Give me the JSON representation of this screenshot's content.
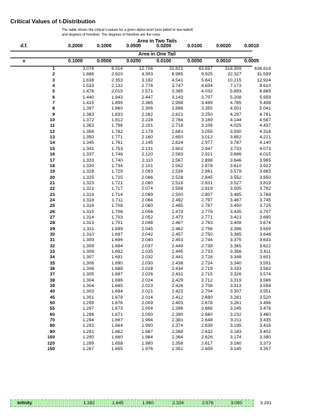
{
  "title": "Critical Values of t-Distribution",
  "description_line1": "The table shows the critical t-values for a given alpha level (one-tailed or two-tailed)",
  "description_line2": "and degrees of freedom.  The degrees of freedom are the rows.",
  "two_tails_label": "Area in Two Tails",
  "one_tail_label": "Area in One Tail",
  "df_label": "d.f.",
  "v_label": "v",
  "two_tail_alphas": [
    "0.2000",
    "0.1000",
    "0.0500",
    "0.0200",
    "0.0100",
    "0.0020",
    "0.0010"
  ],
  "one_tail_alphas": [
    "0.1000",
    "0.0500",
    "0.0250",
    "0.0100",
    "0.0050",
    "0.0010",
    "0.0005"
  ],
  "rows": [
    [
      "1",
      "3.078",
      "6.314",
      "12.706",
      "31.821",
      "63.657",
      "318.309",
      "636.619"
    ],
    [
      "2",
      "1.886",
      "2.920",
      "4.303",
      "6.965",
      "9.925",
      "22.327",
      "31.599"
    ],
    [
      "3",
      "1.638",
      "2.353",
      "3.182",
      "4.541",
      "5.841",
      "10.215",
      "12.924"
    ],
    [
      "4",
      "1.533",
      "2.132",
      "2.776",
      "3.747",
      "4.604",
      "7.173",
      "8.610"
    ],
    [
      "5",
      "1.476",
      "2.015",
      "2.571",
      "3.365",
      "4.032",
      "5.893",
      "6.869"
    ],
    [
      "6",
      "1.440",
      "1.943",
      "2.447",
      "3.143",
      "3.707",
      "5.208",
      "5.959"
    ],
    [
      "7",
      "1.415",
      "1.895",
      "2.365",
      "2.998",
      "3.499",
      "4.785",
      "5.408"
    ],
    [
      "8",
      "1.397",
      "1.860",
      "2.306",
      "2.896",
      "3.355",
      "4.501",
      "5.041"
    ],
    [
      "9",
      "1.383",
      "1.833",
      "2.262",
      "2.821",
      "3.250",
      "4.297",
      "4.781"
    ],
    [
      "10",
      "1.372",
      "1.812",
      "2.228",
      "2.764",
      "3.169",
      "4.144",
      "4.587"
    ],
    [
      "11",
      "1.363",
      "1.796",
      "2.201",
      "2.718",
      "3.106",
      "4.025",
      "4.437"
    ],
    [
      "12",
      "1.356",
      "1.782",
      "2.179",
      "2.681",
      "3.055",
      "3.930",
      "4.318"
    ],
    [
      "13",
      "1.350",
      "1.771",
      "2.160",
      "2.650",
      "3.012",
      "3.852",
      "4.221"
    ],
    [
      "14",
      "1.345",
      "1.761",
      "2.145",
      "2.624",
      "2.977",
      "3.787",
      "4.140"
    ],
    [
      "15",
      "1.341",
      "1.753",
      "2.131",
      "2.602",
      "2.947",
      "3.733",
      "4.073"
    ],
    [
      "16",
      "1.337",
      "1.746",
      "2.120",
      "2.583",
      "2.921",
      "3.686",
      "4.015"
    ],
    [
      "17",
      "1.333",
      "1.740",
      "2.110",
      "2.567",
      "2.898",
      "3.646",
      "3.965"
    ],
    [
      "18",
      "1.330",
      "1.734",
      "2.101",
      "2.552",
      "2.878",
      "3.610",
      "3.922"
    ],
    [
      "19",
      "1.328",
      "1.729",
      "2.093",
      "2.539",
      "2.861",
      "3.579",
      "3.883"
    ],
    [
      "20",
      "1.325",
      "1.725",
      "2.086",
      "2.528",
      "2.845",
      "3.552",
      "3.850"
    ],
    [
      "21",
      "1.323",
      "1.721",
      "2.080",
      "2.518",
      "2.831",
      "3.527",
      "3.819"
    ],
    [
      "22",
      "1.321",
      "1.717",
      "2.074",
      "2.508",
      "2.819",
      "3.505",
      "3.792"
    ],
    [
      "23",
      "1.319",
      "1.714",
      "2.069",
      "2.500",
      "2.807",
      "3.485",
      "3.768"
    ],
    [
      "24",
      "1.318",
      "1.711",
      "2.064",
      "2.492",
      "2.797",
      "3.467",
      "3.745"
    ],
    [
      "25",
      "1.316",
      "1.708",
      "2.060",
      "2.485",
      "2.787",
      "3.450",
      "3.725"
    ],
    [
      "26",
      "1.315",
      "1.706",
      "2.056",
      "2.479",
      "2.779",
      "3.435",
      "3.707"
    ],
    [
      "27",
      "1.314",
      "1.703",
      "2.052",
      "2.473",
      "2.771",
      "3.421",
      "3.690"
    ],
    [
      "28",
      "1.313",
      "1.701",
      "2.048",
      "2.467",
      "2.763",
      "3.408",
      "3.674"
    ],
    [
      "29",
      "1.311",
      "1.699",
      "2.045",
      "2.462",
      "2.756",
      "3.396",
      "3.659"
    ],
    [
      "30",
      "1.310",
      "1.697",
      "2.042",
      "2.457",
      "2.750",
      "3.385",
      "3.646"
    ],
    [
      "31",
      "1.309",
      "1.696",
      "2.040",
      "2.453",
      "2.744",
      "3.375",
      "3.633"
    ],
    [
      "32",
      "1.309",
      "1.694",
      "2.037",
      "2.449",
      "2.738",
      "3.365",
      "3.622"
    ],
    [
      "33",
      "1.308",
      "1.692",
      "2.035",
      "2.445",
      "2.733",
      "3.356",
      "3.611"
    ],
    [
      "34",
      "1.307",
      "1.691",
      "2.032",
      "2.441",
      "2.728",
      "3.348",
      "3.601"
    ],
    [
      "35",
      "1.306",
      "1.690",
      "2.030",
      "2.438",
      "2.724",
      "3.340",
      "3.591"
    ],
    [
      "36",
      "1.306",
      "1.688",
      "2.028",
      "2.434",
      "2.719",
      "3.333",
      "3.582"
    ],
    [
      "37",
      "1.305",
      "1.687",
      "2.026",
      "2.431",
      "2.715",
      "3.326",
      "3.574"
    ],
    [
      "38",
      "1.304",
      "1.686",
      "2.024",
      "2.429",
      "2.712",
      "3.319",
      "3.566"
    ],
    [
      "39",
      "1.304",
      "1.685",
      "2.023",
      "2.426",
      "2.708",
      "3.313",
      "3.558"
    ],
    [
      "40",
      "1.303",
      "1.684",
      "2.021",
      "2.423",
      "2.704",
      "3.307",
      "3.551"
    ],
    [
      "45",
      "1.301",
      "1.679",
      "2.014",
      "2.412",
      "2.690",
      "3.281",
      "3.520"
    ],
    [
      "50",
      "1.299",
      "1.676",
      "2.009",
      "2.403",
      "2.678",
      "3.261",
      "3.496"
    ],
    [
      "55",
      "1.297",
      "1.673",
      "2.004",
      "2.396",
      "2.668",
      "3.245",
      "3.476"
    ],
    [
      "60",
      "1.296",
      "1.671",
      "2.000",
      "2.390",
      "2.660",
      "3.232",
      "3.460"
    ],
    [
      "70",
      "1.294",
      "1.667",
      "1.994",
      "2.381",
      "2.648",
      "3.211",
      "3.435"
    ],
    [
      "80",
      "1.292",
      "1.664",
      "1.990",
      "2.374",
      "2.639",
      "3.195",
      "3.416"
    ],
    [
      "90",
      "1.291",
      "1.662",
      "1.987",
      "2.368",
      "2.632",
      "3.183",
      "3.402"
    ],
    [
      "100",
      "1.290",
      "1.660",
      "1.984",
      "2.364",
      "2.626",
      "3.174",
      "3.390"
    ],
    [
      "120",
      "1.289",
      "1.658",
      "1.980",
      "2.358",
      "2.617",
      "3.160",
      "3.373"
    ],
    [
      "150",
      "1.287",
      "1.655",
      "1.976",
      "2.351",
      "2.609",
      "3.145",
      "3.357"
    ]
  ],
  "infinity_row": [
    "Infinity",
    "1.282",
    "1.645",
    "1.960",
    "2.326",
    "2.576",
    "3.090",
    "3.291"
  ]
}
